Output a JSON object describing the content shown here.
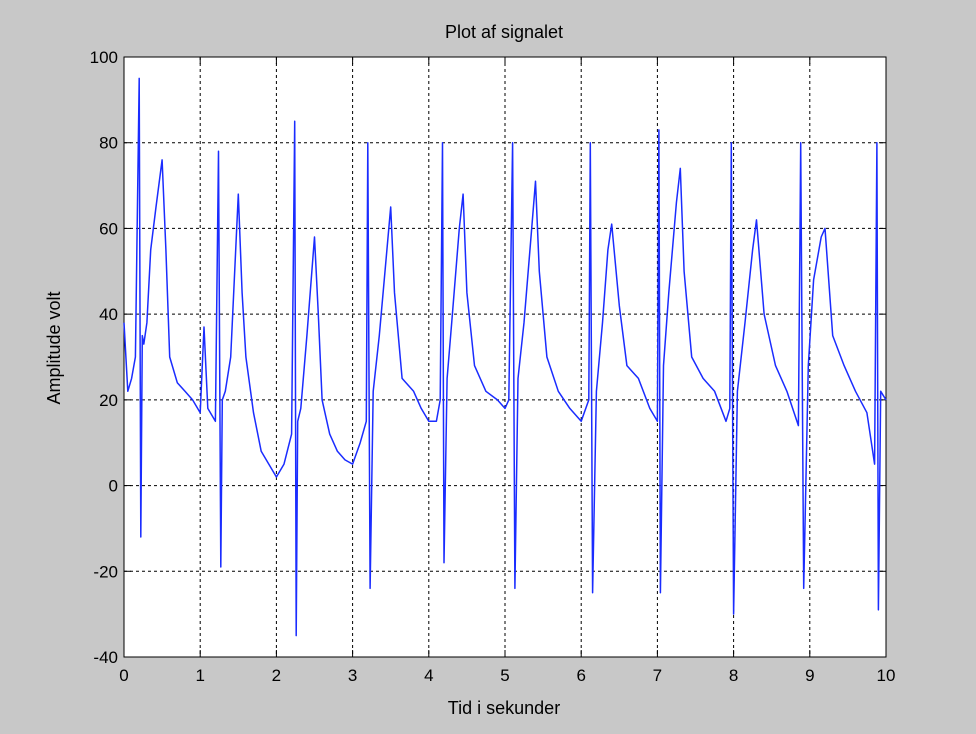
{
  "colors": {
    "figure_background": "#c8c8c8",
    "axes_background": "#ffffff",
    "signal": "#1a2cff",
    "grid": "#000000"
  },
  "chart_data": {
    "type": "line",
    "title": "Plot af signalet",
    "xlabel": "Tid i sekunder",
    "ylabel": "Amplitude volt",
    "xlim": [
      0,
      10
    ],
    "ylim": [
      -40,
      100
    ],
    "xticks": [
      0,
      1,
      2,
      3,
      4,
      5,
      6,
      7,
      8,
      9,
      10
    ],
    "yticks": [
      -40,
      -20,
      0,
      20,
      40,
      60,
      80,
      100
    ],
    "grid": true,
    "grid_style": "dotted",
    "legend": "none",
    "series": [
      {
        "color": "#1a2cff",
        "x": [
          0,
          0.05,
          0.1,
          0.15,
          0.2,
          0.22,
          0.24,
          0.26,
          0.3,
          0.35,
          0.42,
          0.5,
          0.55,
          0.6,
          0.7,
          0.8,
          0.9,
          1.0,
          1.05,
          1.1,
          1.2,
          1.24,
          1.27,
          1.29,
          1.33,
          1.4,
          1.5,
          1.55,
          1.6,
          1.7,
          1.8,
          1.9,
          2.0,
          2.1,
          2.2,
          2.24,
          2.26,
          2.28,
          2.32,
          2.4,
          2.5,
          2.55,
          2.6,
          2.7,
          2.8,
          2.9,
          3.0,
          3.1,
          3.18,
          3.2,
          3.23,
          3.27,
          3.35,
          3.45,
          3.5,
          3.55,
          3.65,
          3.8,
          3.9,
          4.0,
          4.1,
          4.15,
          4.18,
          4.2,
          4.24,
          4.3,
          4.4,
          4.45,
          4.5,
          4.6,
          4.75,
          4.9,
          5.0,
          5.05,
          5.1,
          5.13,
          5.17,
          5.25,
          5.35,
          5.4,
          5.45,
          5.55,
          5.7,
          5.85,
          6.0,
          6.1,
          6.12,
          6.15,
          6.2,
          6.28,
          6.35,
          6.4,
          6.5,
          6.6,
          6.75,
          6.9,
          7.0,
          7.02,
          7.04,
          7.08,
          7.15,
          7.25,
          7.3,
          7.35,
          7.45,
          7.6,
          7.75,
          7.9,
          7.95,
          7.97,
          8.0,
          8.05,
          8.15,
          8.25,
          8.3,
          8.4,
          8.55,
          8.7,
          8.85,
          8.88,
          8.92,
          8.98,
          9.05,
          9.15,
          9.2,
          9.3,
          9.45,
          9.6,
          9.75,
          9.85,
          9.88,
          9.9,
          9.93,
          10.0
        ],
        "y": [
          38,
          22,
          25,
          30,
          95,
          -12,
          35,
          33,
          38,
          55,
          65,
          76,
          55,
          30,
          24,
          22,
          20,
          17,
          37,
          18,
          15,
          78,
          -19,
          20,
          22,
          30,
          68,
          45,
          30,
          17,
          8,
          5,
          2,
          5,
          12,
          85,
          -35,
          15,
          18,
          35,
          58,
          40,
          20,
          12,
          8,
          6,
          5,
          10,
          15,
          80,
          -24,
          22,
          35,
          55,
          65,
          45,
          25,
          22,
          18,
          15,
          15,
          20,
          80,
          -18,
          25,
          38,
          60,
          68,
          45,
          28,
          22,
          20,
          18,
          20,
          80,
          -24,
          25,
          38,
          60,
          71,
          50,
          30,
          22,
          18,
          15,
          20,
          80,
          -25,
          22,
          38,
          55,
          61,
          42,
          28,
          25,
          18,
          15,
          83,
          -25,
          28,
          45,
          66,
          74,
          50,
          30,
          25,
          22,
          15,
          18,
          80,
          -30,
          22,
          38,
          55,
          62,
          40,
          28,
          22,
          14,
          80,
          -24,
          28,
          48,
          58,
          60,
          35,
          28,
          22,
          17,
          5,
          80,
          -29,
          22,
          20
        ]
      }
    ]
  }
}
